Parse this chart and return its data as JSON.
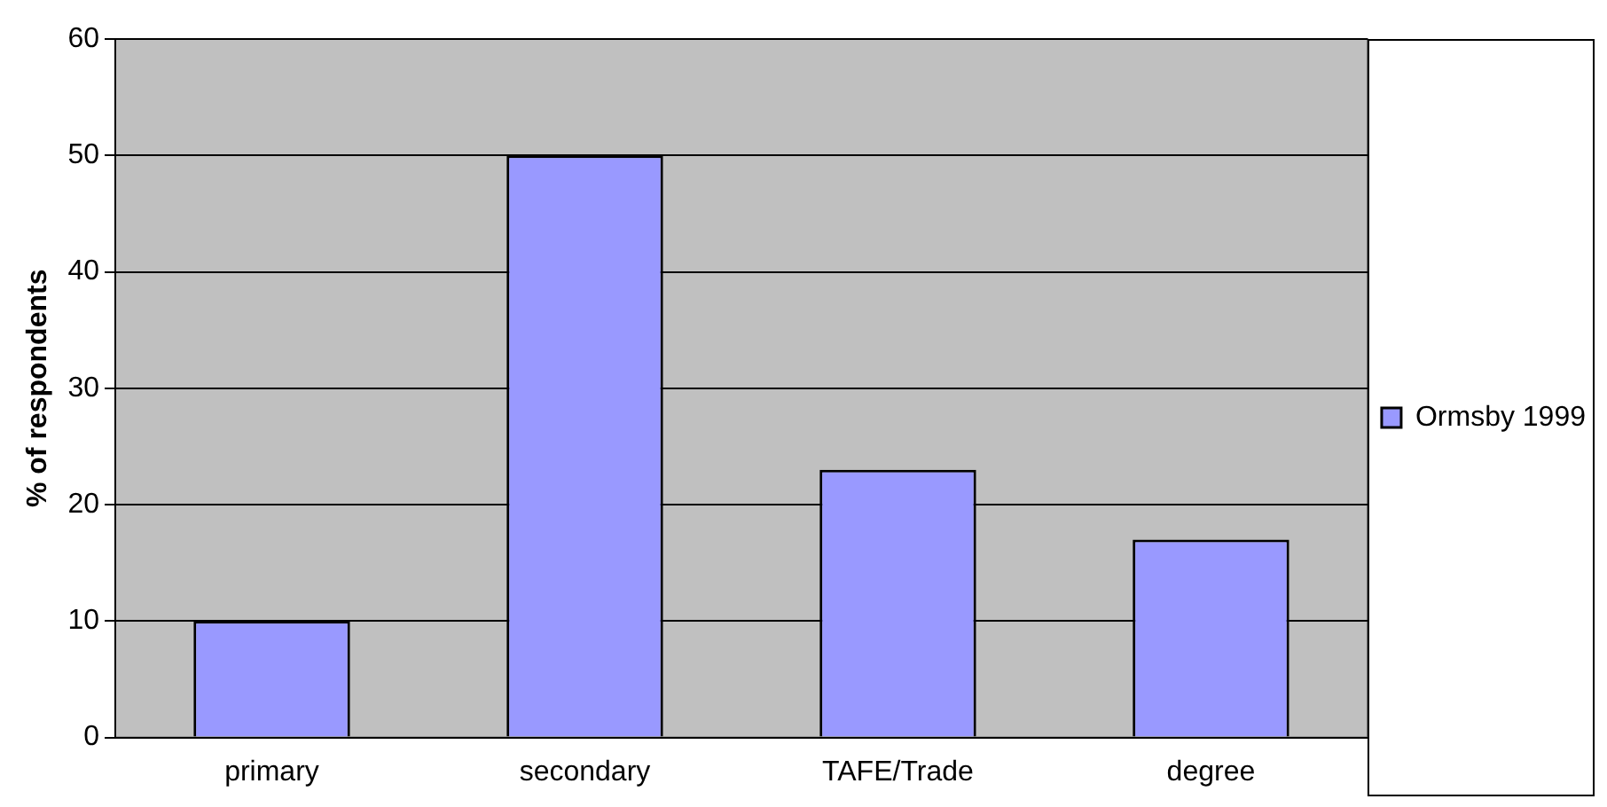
{
  "chart_data": {
    "type": "bar",
    "ylabel": "% of respondents",
    "categories": [
      "primary",
      "secondary",
      "TAFE/Trade",
      "degree"
    ],
    "series": [
      {
        "name": "Ormsby 1999",
        "color": "#9999ff",
        "values": [
          10,
          50,
          23,
          17
        ]
      }
    ],
    "ylim": [
      0,
      60
    ],
    "yticks": [
      0,
      10,
      20,
      30,
      40,
      50,
      60
    ],
    "grid": "y",
    "legend": "right"
  }
}
